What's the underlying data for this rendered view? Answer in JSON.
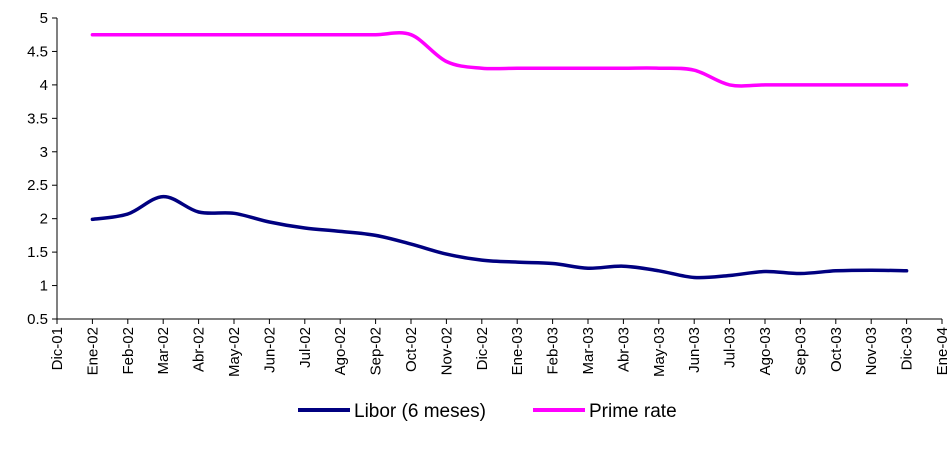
{
  "chart_data": {
    "type": "line",
    "title": "",
    "xlabel": "",
    "ylabel": "",
    "ylim": [
      0.5,
      5
    ],
    "yticks": [
      "0.5",
      "1",
      "1.5",
      "2",
      "2.5",
      "3",
      "3.5",
      "4",
      "4.5",
      "5"
    ],
    "x_ticks": [
      "Dic-01",
      "Ene-02",
      "Feb-02",
      "Mar-02",
      "Abr-02",
      "May-02",
      "Jun-02",
      "Jul-02",
      "Ago-02",
      "Sep-02",
      "Oct-02",
      "Nov-02",
      "Dic-02",
      "Ene-03",
      "Feb-03",
      "Mar-03",
      "Abr-03",
      "May-03",
      "Jun-03",
      "Jul-03",
      "Ago-03",
      "Sep-03",
      "Oct-03",
      "Nov-03",
      "Dic-03",
      "Ene-04"
    ],
    "categories": [
      "Ene-02",
      "Feb-02",
      "Mar-02",
      "Abr-02",
      "May-02",
      "Jun-02",
      "Jul-02",
      "Ago-02",
      "Sep-02",
      "Oct-02",
      "Nov-02",
      "Dic-02",
      "Ene-03",
      "Feb-03",
      "Mar-03",
      "Abr-03",
      "May-03",
      "Jun-03",
      "Jul-03",
      "Ago-03",
      "Sep-03",
      "Oct-03",
      "Nov-03",
      "Dic-03"
    ],
    "grid": false,
    "legend_position": "bottom",
    "series": [
      {
        "name": "Libor (6 meses)",
        "color": "#000080",
        "values": [
          1.99,
          2.07,
          2.33,
          2.1,
          2.08,
          1.95,
          1.86,
          1.81,
          1.75,
          1.62,
          1.47,
          1.38,
          1.35,
          1.33,
          1.26,
          1.29,
          1.22,
          1.12,
          1.15,
          1.21,
          1.18,
          1.22,
          1.23,
          1.22
        ]
      },
      {
        "name": "Prime rate",
        "color": "#ff00ff",
        "values": [
          4.75,
          4.75,
          4.75,
          4.75,
          4.75,
          4.75,
          4.75,
          4.75,
          4.75,
          4.75,
          4.35,
          4.25,
          4.25,
          4.25,
          4.25,
          4.25,
          4.25,
          4.22,
          4.0,
          4.0,
          4.0,
          4.0,
          4.0,
          4.0
        ]
      }
    ]
  }
}
